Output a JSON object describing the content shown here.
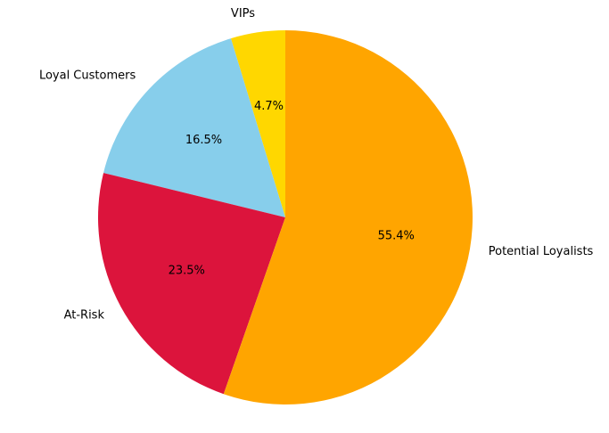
{
  "chart_data": {
    "type": "pie",
    "title": "",
    "categories": [
      "VIPs",
      "Loyal Customers",
      "At-Risk",
      "Potential Loyalists"
    ],
    "values": [
      4.7,
      16.5,
      23.5,
      55.4
    ],
    "value_labels": [
      "4.7%",
      "16.5%",
      "23.5%",
      "55.4%"
    ],
    "colors": [
      "#FFD700",
      "#87CEEB",
      "#DC143C",
      "#FFA500"
    ],
    "start_angle_deg": 90,
    "direction": "counterclockwise",
    "legend": "none"
  }
}
